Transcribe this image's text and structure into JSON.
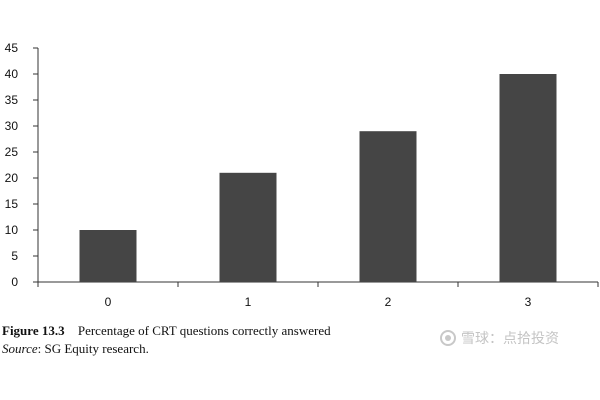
{
  "chart_data": {
    "type": "bar",
    "categories": [
      "0",
      "1",
      "2",
      "3"
    ],
    "values": [
      10,
      21,
      29,
      40
    ],
    "ylim": [
      0,
      45
    ],
    "yticks": [
      0,
      5,
      10,
      15,
      20,
      25,
      30,
      35,
      40,
      45
    ],
    "title": "",
    "xlabel": "",
    "ylabel": "",
    "grid": false,
    "bar_color": "#454545"
  },
  "caption": {
    "figure_label": "Figure 13.3",
    "figure_text": "Percentage of CRT questions correctly answered",
    "source_label": "Source",
    "source_text": ": SG Equity research."
  },
  "watermark": {
    "text": "雪球：点拾投资",
    "icon": "snowball-logo-icon"
  }
}
